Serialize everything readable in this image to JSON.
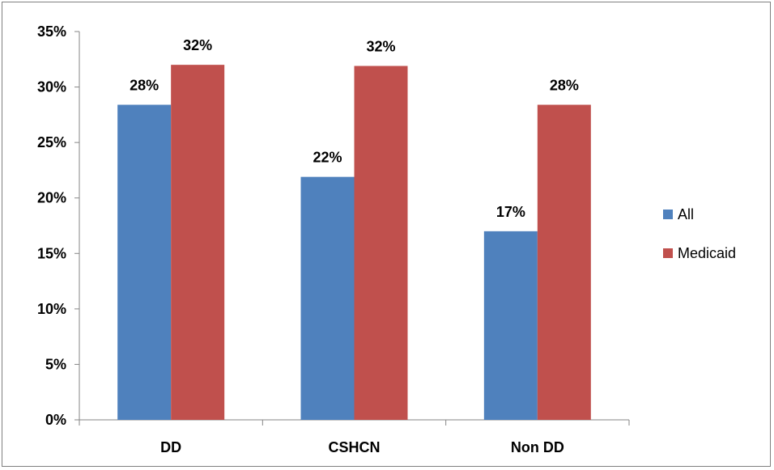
{
  "chart_data": {
    "type": "bar",
    "categories": [
      "DD",
      "CSHCN",
      "Non DD"
    ],
    "series": [
      {
        "name": "All",
        "values": [
          28.4,
          21.9,
          17.0
        ],
        "labels": [
          "28%",
          "22%",
          "17%"
        ],
        "color": "#4f81bd"
      },
      {
        "name": "Medicaid",
        "values": [
          32.0,
          31.9,
          28.4
        ],
        "labels": [
          "32%",
          "32%",
          "28%"
        ],
        "color": "#c0504d"
      }
    ],
    "ylim": [
      0,
      35
    ],
    "yticks": [
      0,
      5,
      10,
      15,
      20,
      25,
      30,
      35
    ],
    "ytick_labels": [
      "0%",
      "5%",
      "10%",
      "15%",
      "20%",
      "25%",
      "30%",
      "35%"
    ],
    "grid": false,
    "legend_position": "right"
  }
}
